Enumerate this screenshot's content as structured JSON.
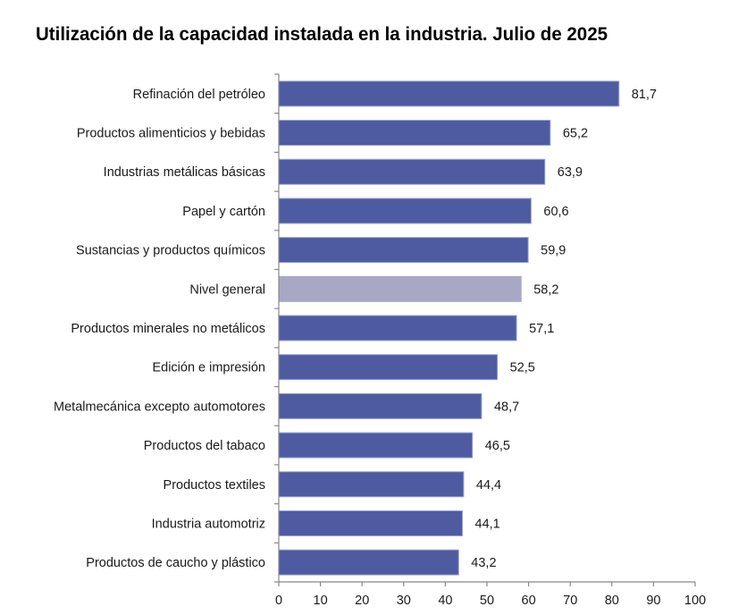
{
  "chart_data": {
    "type": "bar",
    "orientation": "horizontal",
    "title": "Utilización de la capacidad instalada en la industria. Julio de 2025",
    "categories": [
      "Refinación del petróleo",
      "Productos alimenticios y bebidas",
      "Industrias metálicas básicas",
      "Papel y cartón",
      "Sustancias y productos químicos",
      "Nivel general",
      "Productos minerales no metálicos",
      "Edición e impresión",
      "Metalmecánica excepto automotores",
      "Productos del tabaco",
      "Productos textiles",
      "Industria automotriz",
      "Productos de caucho y plástico"
    ],
    "values": [
      81.7,
      65.2,
      63.9,
      60.6,
      59.9,
      58.2,
      57.1,
      52.5,
      48.7,
      46.5,
      44.4,
      44.1,
      43.2
    ],
    "value_labels": [
      "81,7",
      "65,2",
      "63,9",
      "60,6",
      "59,9",
      "58,2",
      "57,1",
      "52,5",
      "48,7",
      "46,5",
      "44,4",
      "44,1",
      "43,2"
    ],
    "xlim": [
      0,
      100
    ],
    "xticks": [
      0,
      10,
      20,
      30,
      40,
      50,
      60,
      70,
      80,
      90,
      100
    ],
    "grid": false,
    "colors": {
      "bar": "#4f5ba1",
      "bar_border": "#9aa3d6",
      "highlight": "#a8a8c5",
      "highlight_category": "Nivel general"
    }
  }
}
